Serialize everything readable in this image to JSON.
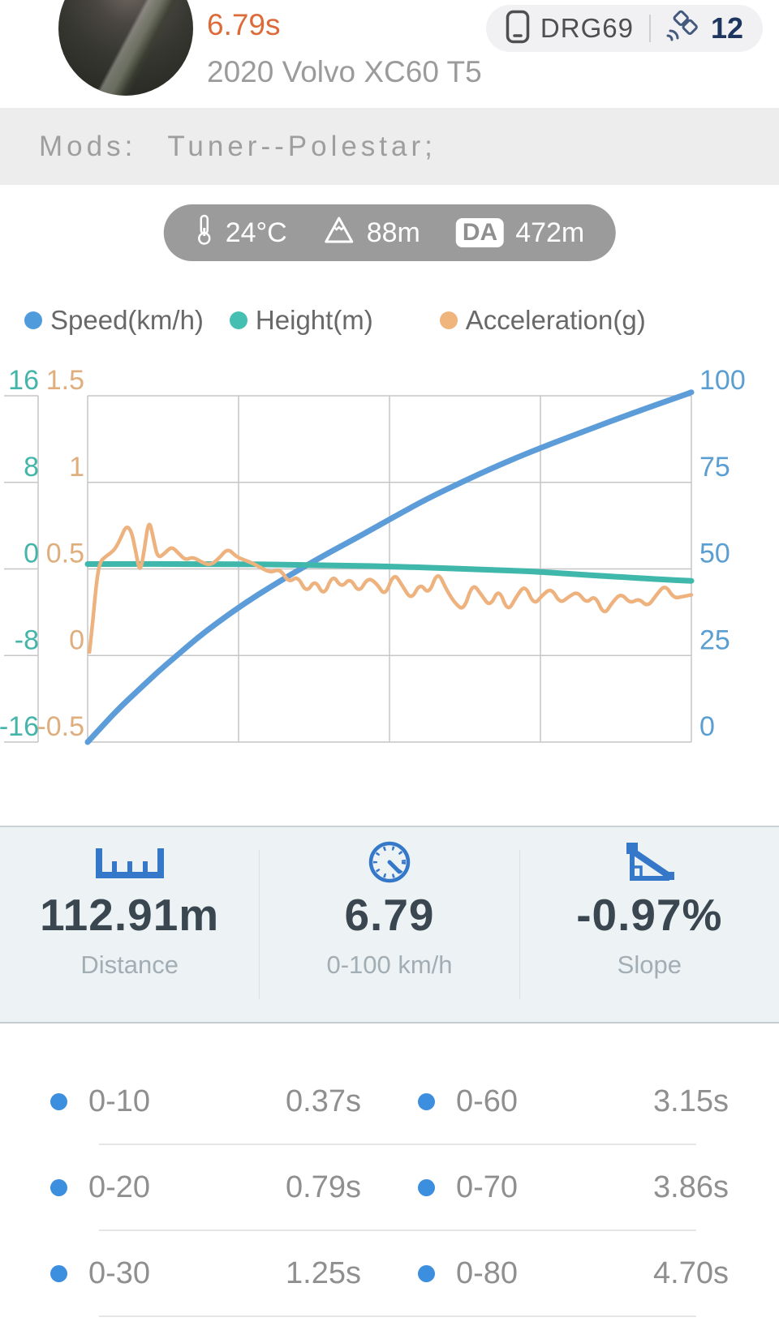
{
  "header": {
    "time": "6.79s",
    "car": "2020 Volvo XC60 T5",
    "device": "DRG69",
    "satellites": "12"
  },
  "mods": {
    "label": "Mods:",
    "value": "Tuner--Polestar;"
  },
  "conditions": {
    "temperature": "24°C",
    "altitude": "88m",
    "da_label": "DA",
    "density_altitude": "472m"
  },
  "legend": [
    {
      "label": "Speed(km/h)",
      "color": "#4f9bdc"
    },
    {
      "label": "Height(m)",
      "color": "#45bfb2"
    },
    {
      "label": "Acceleration(g)",
      "color": "#efb57c"
    }
  ],
  "chart_data": {
    "type": "line",
    "title": "",
    "xlabel": "",
    "x_range": [
      0,
      6.9
    ],
    "grid": true,
    "v_gridlines": 5,
    "axes": {
      "height": {
        "side": "outer-left",
        "color": "#45b5a9",
        "ticks": [
          "16",
          "8",
          "0",
          "-8",
          "-16"
        ],
        "range": [
          -16,
          16
        ]
      },
      "accel": {
        "side": "inner-left",
        "color": "#dfae7c",
        "ticks": [
          "1.5",
          "1",
          "0.5",
          "0",
          "-0.5"
        ],
        "range": [
          -0.5,
          1.5
        ]
      },
      "speed": {
        "side": "right",
        "color": "#5b9fd2",
        "ticks": [
          "100",
          "75",
          "50",
          "25",
          "0"
        ],
        "range": [
          0,
          100
        ]
      }
    },
    "series": [
      {
        "name": "Speed(km/h)",
        "axis": "speed",
        "color": "#5b9cd9",
        "width": 7,
        "points": [
          [
            0,
            0
          ],
          [
            0.2,
            5.5
          ],
          [
            0.37,
            10
          ],
          [
            0.58,
            15
          ],
          [
            0.79,
            20
          ],
          [
            1.02,
            25
          ],
          [
            1.25,
            30
          ],
          [
            1.51,
            35
          ],
          [
            1.79,
            40
          ],
          [
            2.1,
            45
          ],
          [
            2.43,
            50
          ],
          [
            2.78,
            55
          ],
          [
            3.15,
            60
          ],
          [
            3.5,
            65
          ],
          [
            3.86,
            70
          ],
          [
            4.27,
            75
          ],
          [
            4.7,
            80
          ],
          [
            5.18,
            85
          ],
          [
            5.7,
            90
          ],
          [
            6.23,
            95
          ],
          [
            6.79,
            100
          ],
          [
            6.9,
            101
          ]
        ]
      },
      {
        "name": "Height(m)",
        "axis": "height",
        "color": "#3fb8ab",
        "width": 7,
        "points": [
          [
            0,
            0.45
          ],
          [
            0.5,
            0.46
          ],
          [
            1,
            0.45
          ],
          [
            1.5,
            0.44
          ],
          [
            2,
            0.42
          ],
          [
            2.5,
            0.36
          ],
          [
            3,
            0.3
          ],
          [
            3.5,
            0.22
          ],
          [
            4,
            0.1
          ],
          [
            4.5,
            -0.05
          ],
          [
            5,
            -0.2
          ],
          [
            5.5,
            -0.45
          ],
          [
            6,
            -0.7
          ],
          [
            6.5,
            -0.95
          ],
          [
            6.9,
            -1.1
          ]
        ]
      },
      {
        "name": "Acceleration(g)",
        "axis": "accel",
        "color": "#edb27e",
        "width": 4.5,
        "points": [
          [
            0.02,
            0.02
          ],
          [
            0.06,
            0.2
          ],
          [
            0.1,
            0.42
          ],
          [
            0.14,
            0.54
          ],
          [
            0.2,
            0.57
          ],
          [
            0.26,
            0.59
          ],
          [
            0.32,
            0.62
          ],
          [
            0.38,
            0.68
          ],
          [
            0.44,
            0.75
          ],
          [
            0.5,
            0.72
          ],
          [
            0.55,
            0.6
          ],
          [
            0.6,
            0.47
          ],
          [
            0.65,
            0.62
          ],
          [
            0.7,
            0.79
          ],
          [
            0.75,
            0.68
          ],
          [
            0.8,
            0.56
          ],
          [
            0.88,
            0.59
          ],
          [
            0.96,
            0.63
          ],
          [
            1.04,
            0.59
          ],
          [
            1.12,
            0.55
          ],
          [
            1.2,
            0.57
          ],
          [
            1.3,
            0.54
          ],
          [
            1.4,
            0.52
          ],
          [
            1.5,
            0.56
          ],
          [
            1.6,
            0.62
          ],
          [
            1.7,
            0.57
          ],
          [
            1.8,
            0.55
          ],
          [
            1.9,
            0.53
          ],
          [
            2.0,
            0.5
          ],
          [
            2.1,
            0.48
          ],
          [
            2.2,
            0.5
          ],
          [
            2.3,
            0.42
          ],
          [
            2.4,
            0.46
          ],
          [
            2.5,
            0.36
          ],
          [
            2.6,
            0.44
          ],
          [
            2.7,
            0.34
          ],
          [
            2.8,
            0.47
          ],
          [
            2.9,
            0.39
          ],
          [
            3.0,
            0.45
          ],
          [
            3.1,
            0.36
          ],
          [
            3.2,
            0.45
          ],
          [
            3.3,
            0.42
          ],
          [
            3.4,
            0.34
          ],
          [
            3.5,
            0.48
          ],
          [
            3.6,
            0.4
          ],
          [
            3.7,
            0.32
          ],
          [
            3.8,
            0.42
          ],
          [
            3.9,
            0.35
          ],
          [
            4.0,
            0.49
          ],
          [
            4.1,
            0.38
          ],
          [
            4.2,
            0.3
          ],
          [
            4.3,
            0.26
          ],
          [
            4.4,
            0.42
          ],
          [
            4.5,
            0.35
          ],
          [
            4.6,
            0.28
          ],
          [
            4.7,
            0.39
          ],
          [
            4.8,
            0.25
          ],
          [
            4.9,
            0.34
          ],
          [
            5.0,
            0.41
          ],
          [
            5.1,
            0.29
          ],
          [
            5.2,
            0.35
          ],
          [
            5.3,
            0.39
          ],
          [
            5.4,
            0.3
          ],
          [
            5.5,
            0.34
          ],
          [
            5.6,
            0.37
          ],
          [
            5.7,
            0.3
          ],
          [
            5.8,
            0.35
          ],
          [
            5.9,
            0.23
          ],
          [
            6.0,
            0.31
          ],
          [
            6.1,
            0.36
          ],
          [
            6.2,
            0.3
          ],
          [
            6.3,
            0.33
          ],
          [
            6.4,
            0.28
          ],
          [
            6.5,
            0.35
          ],
          [
            6.6,
            0.41
          ],
          [
            6.7,
            0.33
          ],
          [
            6.8,
            0.34
          ],
          [
            6.9,
            0.35
          ]
        ]
      }
    ]
  },
  "stats": [
    {
      "icon": "ruler",
      "value": "112.91m",
      "label": "Distance"
    },
    {
      "icon": "speedometer",
      "value": "6.79",
      "label": "0-100 km/h"
    },
    {
      "icon": "slope",
      "value": "-0.97%",
      "label": "Slope"
    }
  ],
  "splits": [
    [
      {
        "range": "0-10",
        "time": "0.37s"
      },
      {
        "range": "0-60",
        "time": "3.15s"
      }
    ],
    [
      {
        "range": "0-20",
        "time": "0.79s"
      },
      {
        "range": "0-70",
        "time": "3.86s"
      }
    ],
    [
      {
        "range": "0-30",
        "time": "1.25s"
      },
      {
        "range": "0-80",
        "time": "4.70s"
      }
    ]
  ]
}
